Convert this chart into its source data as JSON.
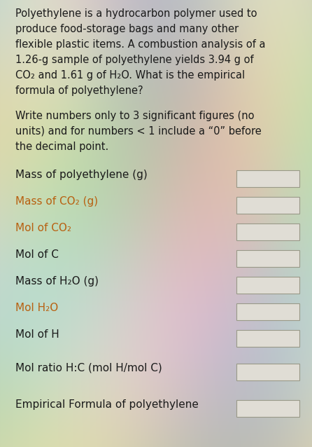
{
  "background_color": "#c8c8c0",
  "text_color_black": "#1a1a1a",
  "text_color_orange": "#b86010",
  "paragraph1_lines": [
    "Polyethylene is a hydrocarbon polymer used to",
    "produce food-storage bags and many other",
    "flexible plastic items. A combustion analysis of a",
    "1.26-g sample of polyethylene yields 3.94 g of",
    "CO₂ and 1.61 g of H₂O. What is the empirical",
    "formula of polyethylene?"
  ],
  "paragraph2_lines": [
    "Write numbers only to 3 significant figures (no",
    "units) and for numbers < 1 include a “0” before",
    "the decimal point."
  ],
  "rows": [
    {
      "label": "Mass of polyethylene (g)",
      "color": "black"
    },
    {
      "label": "Mass of CO₂ (g)",
      "color": "orange"
    },
    {
      "label": "Mol of CO₂",
      "color": "orange"
    },
    {
      "label": "Mol of C",
      "color": "black"
    },
    {
      "label": "Mass of H₂O (g)",
      "color": "black"
    },
    {
      "label": "Mol H₂O",
      "color": "orange"
    },
    {
      "label": "Mol of H",
      "color": "black"
    },
    {
      "label": "Mol ratio H:C (mol H/mol C)",
      "color": "black"
    },
    {
      "label": "Empirical Formula of polyethylene",
      "color": "black"
    }
  ],
  "box_fill_color": "#e0ddd5",
  "box_edge_color": "#999988",
  "figsize": [
    4.46,
    6.38
  ],
  "dpi": 100
}
